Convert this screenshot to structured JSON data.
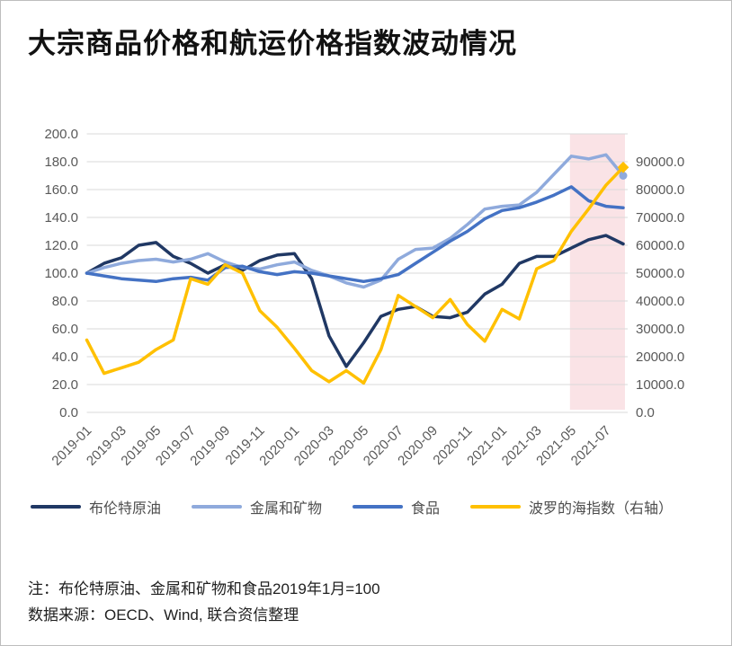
{
  "page": {
    "title": "大宗商品价格和航运价格指数波动情况"
  },
  "notes": {
    "line1": "注：布伦特原油、金属和矿物和食品2019年1月=100",
    "line2": "数据来源：OECD、Wind, 联合资信整理"
  },
  "colors": {
    "grid": "#d9d9d9",
    "axis_text": "#595959",
    "band": "#fae3e6",
    "border": "#bdbdbd",
    "brent": "#203864",
    "metals": "#8faadc",
    "food": "#4472c4",
    "baltic": "#ffc000"
  },
  "chart_data": {
    "type": "line",
    "title": "大宗商品价格和航运价格指数波动情况",
    "grid": true,
    "legend_position": "bottom",
    "x": [
      "2019-01",
      "2019-02",
      "2019-03",
      "2019-04",
      "2019-05",
      "2019-06",
      "2019-07",
      "2019-08",
      "2019-09",
      "2019-10",
      "2019-11",
      "2019-12",
      "2020-01",
      "2020-02",
      "2020-03",
      "2020-04",
      "2020-05",
      "2020-06",
      "2020-07",
      "2020-08",
      "2020-09",
      "2020-10",
      "2020-11",
      "2020-12",
      "2021-01",
      "2021-02",
      "2021-03",
      "2021-04",
      "2021-05",
      "2021-06",
      "2021-07",
      "2021-08"
    ],
    "x_tick_labels": [
      "2019-01",
      "2019-03",
      "2019-05",
      "2019-07",
      "2019-09",
      "2019-11",
      "2020-01",
      "2020-03",
      "2020-05",
      "2020-07",
      "2020-09",
      "2020-11",
      "2021-01",
      "2021-03",
      "2021-05",
      "2021-07"
    ],
    "left_axis": {
      "min": 0,
      "max": 200,
      "step": 20,
      "tick_labels": [
        "0.0",
        "20.0",
        "40.0",
        "60.0",
        "80.0",
        "100.0",
        "120.0",
        "140.0",
        "160.0",
        "180.0",
        "200.0"
      ]
    },
    "right_axis": {
      "min": 0,
      "max": 90000,
      "step": 10000,
      "tick_labels": [
        "0.0",
        "10000.0",
        "20000.0",
        "30000.0",
        "40000.0",
        "50000.0",
        "60000.0",
        "70000.0",
        "80000.0",
        "90000.0"
      ]
    },
    "highlight_band": {
      "from": "2021-05",
      "to": "2021-08",
      "color": "#fae3e6"
    },
    "series": [
      {
        "key": "brent",
        "name": "布伦特原油",
        "axis": "left",
        "color": "#203864",
        "end_marker": "none",
        "values": [
          100,
          107,
          111,
          120,
          122,
          112,
          107,
          100,
          106,
          102,
          109,
          113,
          114,
          96,
          55,
          33,
          50,
          69,
          74,
          76,
          69,
          68,
          72,
          85,
          92,
          107,
          112,
          112,
          118,
          124,
          127,
          121
        ]
      },
      {
        "key": "metals",
        "name": "金属和矿物",
        "axis": "left",
        "color": "#8faadc",
        "end_marker": "circle",
        "values": [
          100,
          104,
          107,
          109,
          110,
          108,
          110,
          114,
          108,
          104,
          103,
          106,
          108,
          102,
          98,
          93,
          90,
          95,
          110,
          117,
          118,
          125,
          135,
          146,
          148,
          149,
          158,
          171,
          184,
          182,
          185,
          170
        ]
      },
      {
        "key": "food",
        "name": "食品",
        "axis": "left",
        "color": "#4472c4",
        "end_marker": "none",
        "values": [
          100,
          98,
          96,
          95,
          94,
          96,
          97,
          95,
          104,
          105,
          101,
          99,
          101,
          100,
          98,
          96,
          94,
          96,
          99,
          107,
          115,
          123,
          130,
          139,
          145,
          147,
          151,
          156,
          162,
          152,
          148,
          147
        ]
      },
      {
        "key": "baltic",
        "name": "波罗的海指数（右轴）",
        "axis": "right",
        "color": "#ffc000",
        "end_marker": "diamond",
        "values": [
          23400,
          12600,
          14400,
          16200,
          20300,
          23400,
          43200,
          41400,
          47700,
          45000,
          32900,
          27500,
          20700,
          13500,
          9900,
          13500,
          9500,
          20300,
          37800,
          34200,
          30600,
          36500,
          28400,
          23000,
          33300,
          30200,
          46400,
          49100,
          58500,
          65700,
          73400,
          79200
        ]
      }
    ]
  }
}
